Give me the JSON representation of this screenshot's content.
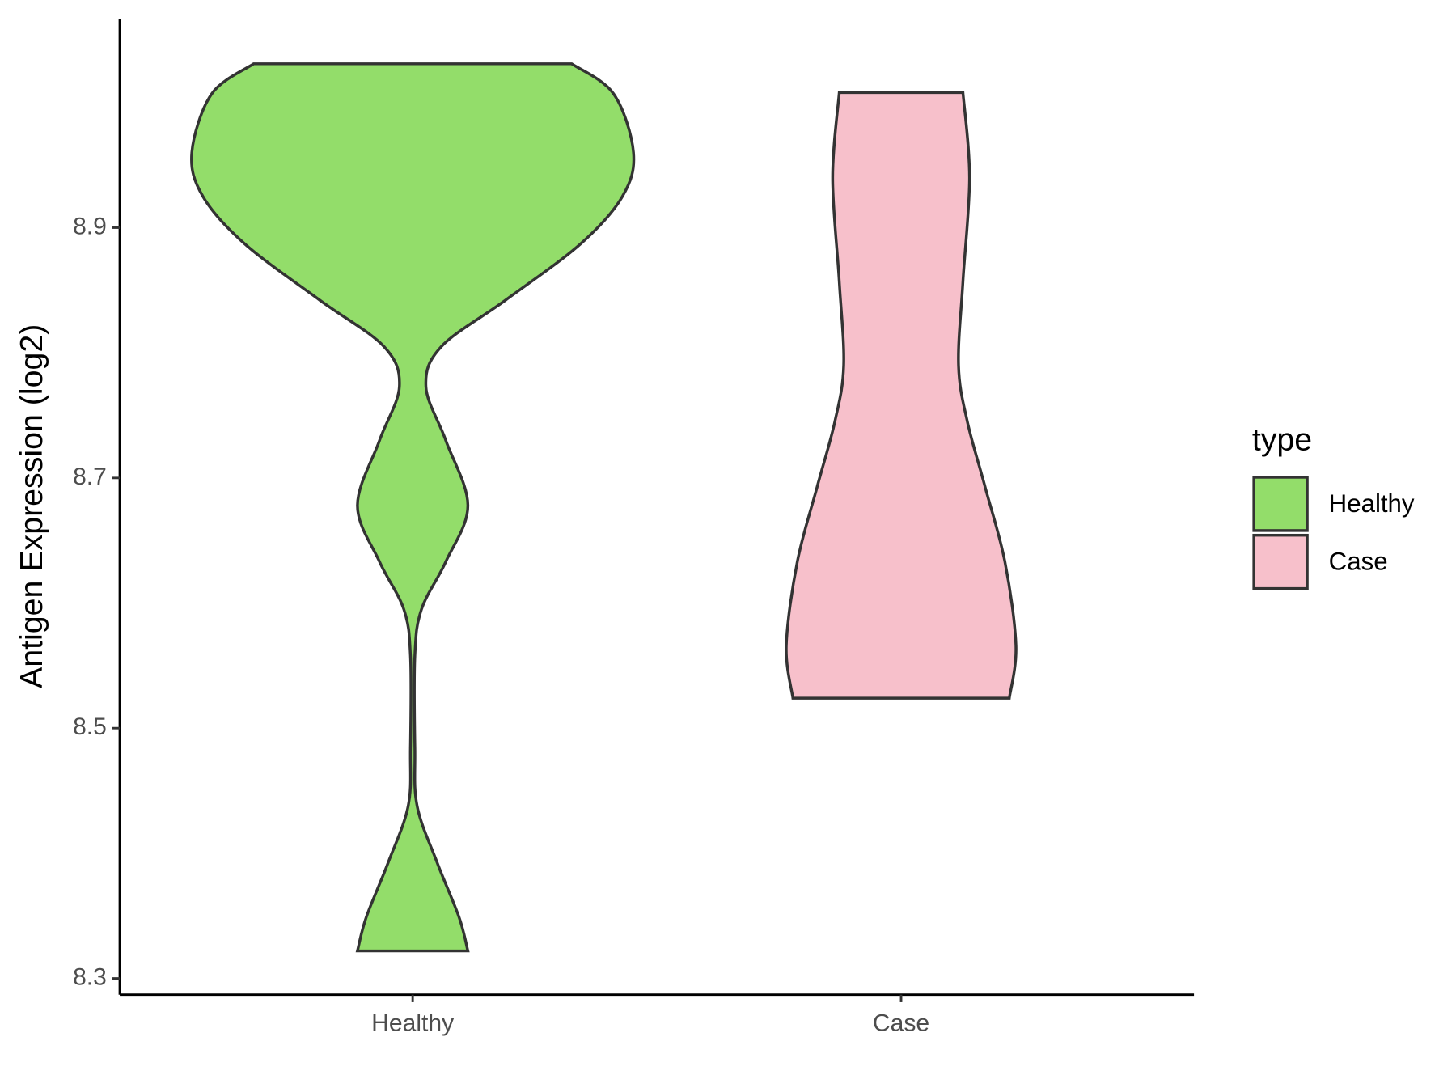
{
  "chart_data": {
    "type": "violin",
    "y_label": "Antigen Expression (log2)",
    "categories": [
      "Healthy",
      "Case"
    ],
    "legend_title": "type",
    "ylim": [
      8.287,
      9.067
    ],
    "yticks": [
      8.3,
      8.5,
      8.7,
      8.9
    ],
    "series": [
      {
        "name": "Healthy",
        "color": "#93dd6a",
        "y": [
          9.031,
          9.007,
          8.96,
          8.925,
          8.887,
          8.842,
          8.805,
          8.773,
          8.73,
          8.678,
          8.633,
          8.595,
          8.558,
          8.484,
          8.438,
          8.393,
          8.349,
          8.322
        ],
        "width": [
          0.72,
          0.91,
          1,
          0.95,
          0.76,
          0.42,
          0.13,
          0.06,
          0.15,
          0.25,
          0.15,
          0.04,
          0.01,
          0.01,
          0.02,
          0.11,
          0.21,
          0.25
        ]
      },
      {
        "name": "Case",
        "color": "#f7c0cb",
        "y": [
          9.008,
          8.94,
          8.857,
          8.79,
          8.745,
          8.693,
          8.633,
          8.566,
          8.524
        ],
        "width": [
          0.28,
          0.31,
          0.28,
          0.26,
          0.3,
          0.38,
          0.47,
          0.52,
          0.49
        ]
      }
    ]
  }
}
